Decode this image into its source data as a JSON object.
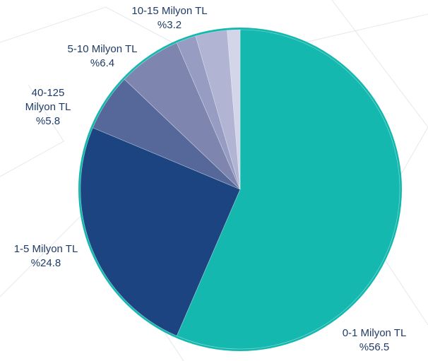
{
  "chart_data": {
    "type": "pie",
    "categories": [
      "0-1 Milyon TL",
      "1-5 Milyon TL",
      "40-125 Milyon TL",
      "5-10 Milyon TL",
      null,
      "10-15 Milyon TL",
      null
    ],
    "values": [
      56.5,
      24.8,
      5.8,
      6.4,
      2.0,
      3.2,
      1.3
    ],
    "value_labels": [
      "%56.5",
      "%24.8",
      "%5.8",
      "%6.4",
      null,
      "%3.2",
      null
    ],
    "colors": [
      "#14b8ae",
      "#1b4480",
      "#56679a",
      "#7e86b0",
      "#979cc2",
      "#b1b5d3",
      "#d3d6e8"
    ]
  }
}
